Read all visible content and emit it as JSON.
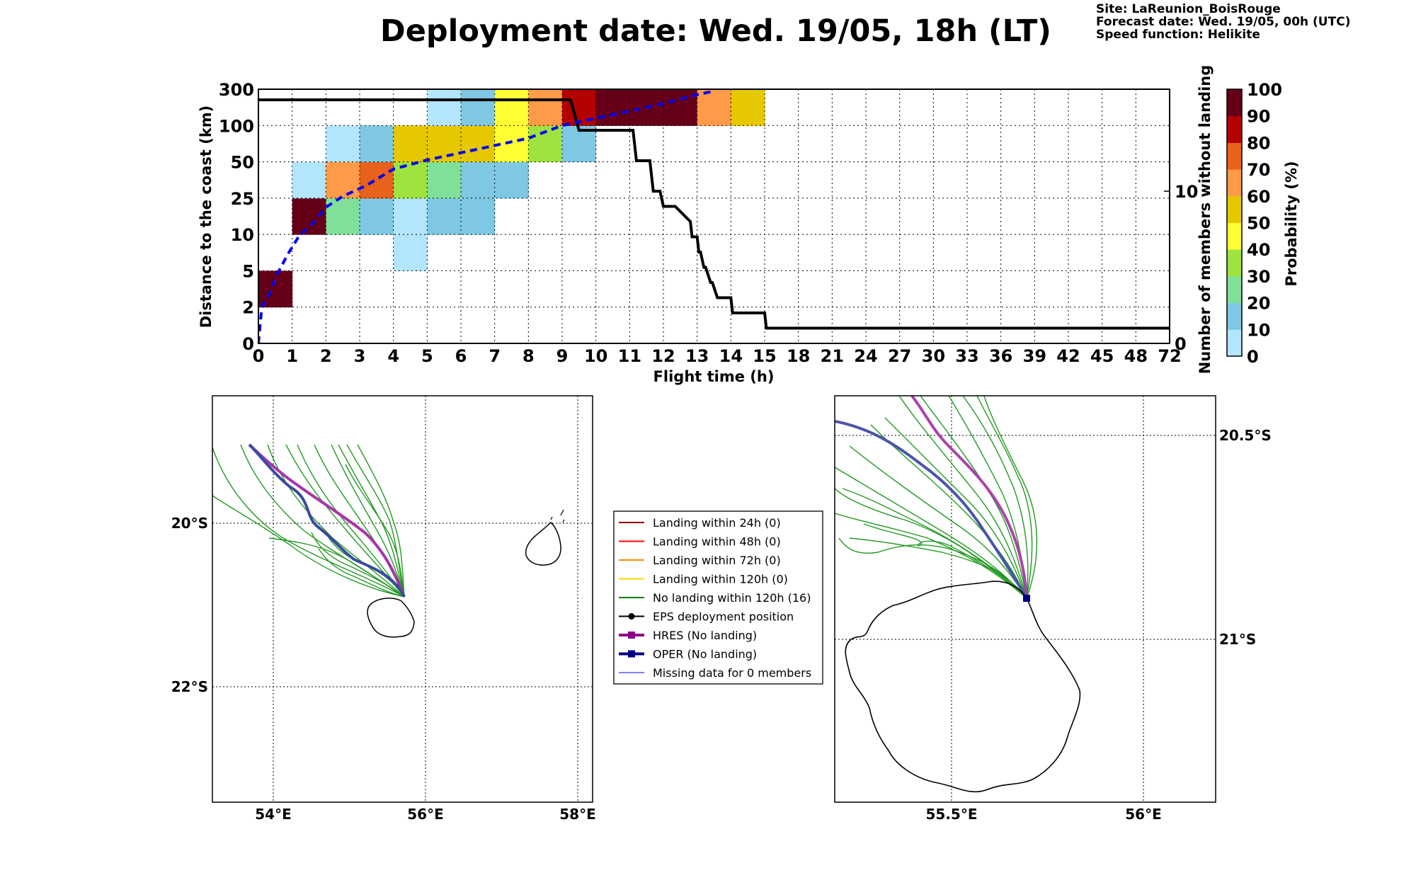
{
  "header": {
    "title": "Deployment date: Wed. 19/05, 18h (LT)",
    "site": "Site: LaReunion_BoisRouge",
    "forecast": "Forecast date: Wed. 19/05, 00h (UTC)",
    "speed": "Speed function: Helikite"
  },
  "chart_data": [
    {
      "type": "heatmap",
      "xlabel": "Flight time (h)",
      "ylabel": "Distance to the coast (km)",
      "ylabel_right": "Number of members without landing",
      "colorbar_label": "Probability (%)",
      "x_ticks": [
        "0",
        "1",
        "2",
        "3",
        "4",
        "5",
        "6",
        "7",
        "8",
        "9",
        "10",
        "11",
        "12",
        "13",
        "14",
        "15",
        "18",
        "21",
        "24",
        "27",
        "30",
        "33",
        "36",
        "39",
        "42",
        "45",
        "48",
        "72"
      ],
      "y_ticks": [
        "0",
        "2",
        "5",
        "10",
        "25",
        "50",
        "100",
        "300"
      ],
      "right_ticks": [
        "0",
        "10"
      ],
      "colorbar_ticks": [
        "0",
        "10",
        "20",
        "30",
        "40",
        "50",
        "60",
        "70",
        "80",
        "90",
        "100"
      ],
      "colorbar_colors": [
        "#b3e5fc",
        "#7ec8e3",
        "#80e09a",
        "#9ee33f",
        "#ffff33",
        "#e6c800",
        "#ff9a48",
        "#e8621c",
        "#b30000",
        "#660018"
      ],
      "grid": true,
      "cells": [
        {
          "x_bin": 0,
          "y_bin": 1,
          "color": "#660018"
        },
        {
          "x_bin": 1,
          "y_bin": 3,
          "color": "#660018"
        },
        {
          "x_bin": 1,
          "y_bin": 4,
          "color": "#b3e5fc"
        },
        {
          "x_bin": 2,
          "y_bin": 3,
          "color": "#80e09a"
        },
        {
          "x_bin": 2,
          "y_bin": 4,
          "color": "#ff9a48"
        },
        {
          "x_bin": 2,
          "y_bin": 5,
          "color": "#b3e5fc"
        },
        {
          "x_bin": 3,
          "y_bin": 3,
          "color": "#7ec8e3"
        },
        {
          "x_bin": 3,
          "y_bin": 4,
          "color": "#e8621c"
        },
        {
          "x_bin": 3,
          "y_bin": 5,
          "color": "#7ec8e3"
        },
        {
          "x_bin": 4,
          "y_bin": 2,
          "color": "#b3e5fc"
        },
        {
          "x_bin": 4,
          "y_bin": 3,
          "color": "#b3e5fc"
        },
        {
          "x_bin": 4,
          "y_bin": 4,
          "color": "#9ee33f"
        },
        {
          "x_bin": 4,
          "y_bin": 5,
          "color": "#e6c800"
        },
        {
          "x_bin": 5,
          "y_bin": 3,
          "color": "#7ec8e3"
        },
        {
          "x_bin": 5,
          "y_bin": 4,
          "color": "#80e09a"
        },
        {
          "x_bin": 5,
          "y_bin": 5,
          "color": "#e6c800"
        },
        {
          "x_bin": 5,
          "y_bin": 6,
          "color": "#b3e5fc"
        },
        {
          "x_bin": 6,
          "y_bin": 3,
          "color": "#7ec8e3"
        },
        {
          "x_bin": 6,
          "y_bin": 4,
          "color": "#7ec8e3"
        },
        {
          "x_bin": 6,
          "y_bin": 5,
          "color": "#e6c800"
        },
        {
          "x_bin": 6,
          "y_bin": 6,
          "color": "#7ec8e3"
        },
        {
          "x_bin": 7,
          "y_bin": 4,
          "color": "#7ec8e3"
        },
        {
          "x_bin": 7,
          "y_bin": 5,
          "color": "#ffff33"
        },
        {
          "x_bin": 7,
          "y_bin": 6,
          "color": "#ffff33"
        },
        {
          "x_bin": 8,
          "y_bin": 5,
          "color": "#9ee33f"
        },
        {
          "x_bin": 8,
          "y_bin": 6,
          "color": "#ff9a48"
        },
        {
          "x_bin": 9,
          "y_bin": 5,
          "color": "#7ec8e3"
        },
        {
          "x_bin": 9,
          "y_bin": 6,
          "color": "#b30000"
        },
        {
          "x_bin": 10,
          "y_bin": 6,
          "color": "#660018"
        },
        {
          "x_bin": 11,
          "y_bin": 6,
          "color": "#660018"
        },
        {
          "x_bin": 12,
          "y_bin": 6,
          "color": "#660018"
        },
        {
          "x_bin": 13,
          "y_bin": 6,
          "color": "#ff9a48"
        },
        {
          "x_bin": 14,
          "y_bin": 6,
          "color": "#e6c800"
        }
      ],
      "median_distance_curve": {
        "color": "#0000ee",
        "x_bin": [
          0,
          0.1,
          0.35,
          0.55,
          0.9,
          1.2,
          1.6,
          2.0,
          2.5,
          3.2,
          4.0,
          5.0,
          6.0,
          7.0,
          8.0,
          9.0,
          10.0,
          11.0,
          12.0,
          13.0,
          13.5
        ],
        "y_bin": [
          0.0,
          1.0,
          1.4,
          1.9,
          2.5,
          2.95,
          3.3,
          3.75,
          4.05,
          4.35,
          4.8,
          5.05,
          5.25,
          5.45,
          5.65,
          6.0,
          6.2,
          6.4,
          6.6,
          6.85,
          6.95
        ]
      },
      "members_without_landing": {
        "color": "#000000",
        "right_ylim": [
          0,
          16.7
        ],
        "x_bin": [
          0,
          9.25,
          9.5,
          11.1,
          11.2,
          11.6,
          11.7,
          11.9,
          12.0,
          12.35,
          12.8,
          12.85,
          13.0,
          13.05,
          13.1,
          13.2,
          13.25,
          13.4,
          13.45,
          13.6,
          13.65,
          14.0,
          14.05,
          15.0,
          15.05,
          27
        ],
        "members": [
          16,
          16,
          14,
          14,
          12,
          12,
          10,
          10,
          9,
          9,
          8,
          7,
          7,
          6,
          6,
          5,
          5,
          4,
          4,
          3,
          3,
          3,
          2,
          2,
          1,
          1
        ]
      }
    }
  ],
  "maps": {
    "left": {
      "lon_labels": [
        "54°E",
        "56°E",
        "58°E"
      ],
      "lat_labels": [
        "20°S",
        "22°S"
      ]
    },
    "right": {
      "lon_labels": [
        "55.5°E",
        "56°E"
      ],
      "lat_labels": [
        "20.5°S",
        "21°S"
      ]
    }
  },
  "legend": {
    "items": [
      {
        "label": "Landing within 24h (0)",
        "color": "#8b0000",
        "marker": "none",
        "width": 2
      },
      {
        "label": "Landing within 48h (0)",
        "color": "#ff0000",
        "marker": "none",
        "width": 2
      },
      {
        "label": "Landing within 72h (0)",
        "color": "#ff8c00",
        "marker": "none",
        "width": 2
      },
      {
        "label": "Landing within 120h (0)",
        "color": "#ffd700",
        "marker": "none",
        "width": 2
      },
      {
        "label": "No landing within 120h (16)",
        "color": "#008000",
        "marker": "none",
        "width": 2
      },
      {
        "label": "EPS deployment position",
        "color": "#000000",
        "marker": "circle",
        "width": 2
      },
      {
        "label": "HRES (No landing)",
        "color": "#8b008b",
        "marker": "square",
        "width": 4
      },
      {
        "label": "OPER (No landing)",
        "color": "#000080",
        "marker": "square",
        "width": 4
      },
      {
        "label": "Missing data for 0 members",
        "color": "#0000ff",
        "marker": "none",
        "width": 1
      }
    ]
  }
}
